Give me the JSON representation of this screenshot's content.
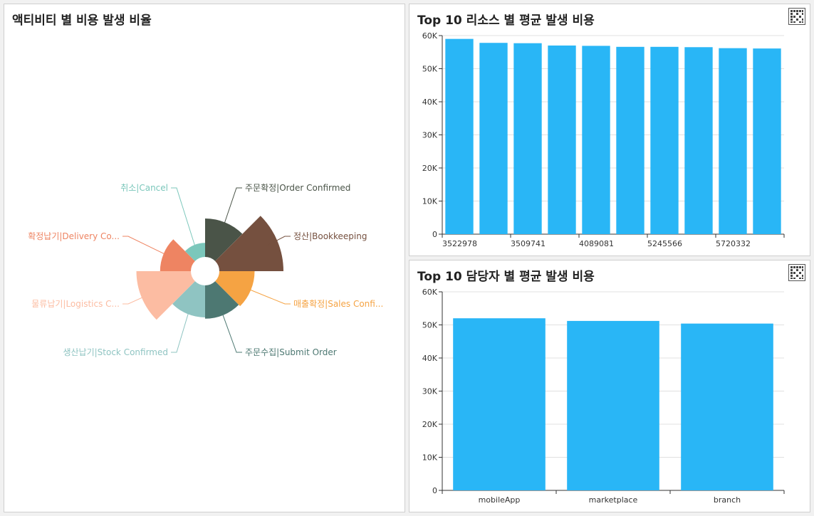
{
  "panels": {
    "activity": {
      "title": "액티비티 별 비용 발생 비율"
    },
    "resource": {
      "title": "Top 10 리소스 별 평균 발생 비용"
    },
    "staff": {
      "title": "Top 10 담당자 별 평균 발생 비용"
    }
  },
  "icons": {
    "menu": "grid-menu-icon"
  },
  "chart_data": [
    {
      "type": "pie",
      "variant": "rose",
      "slices": [
        {
          "label": "주문확정|Order Confirmed",
          "value": 60,
          "color": "#4a5448"
        },
        {
          "label": "정산|Bookkeeping",
          "value": 100,
          "color": "#75503f"
        },
        {
          "label": "매출확정|Sales Confi...",
          "value": 55,
          "color": "#f5a343"
        },
        {
          "label": "주문수집|Submit Order",
          "value": 52,
          "color": "#4d7872"
        },
        {
          "label": "생산납기|Stock Confirmed",
          "value": 50,
          "color": "#8fc4c2"
        },
        {
          "label": "물류납기|Logistics C...",
          "value": 85,
          "color": "#fcbca2"
        },
        {
          "label": "확정납기|Delivery Co...",
          "value": 48,
          "color": "#ee8462"
        },
        {
          "label": "취소|Cancel",
          "value": 22,
          "color": "#7bc7bb"
        }
      ]
    },
    {
      "type": "bar",
      "categories": [
        "3522978",
        "",
        "3509741",
        "",
        "4089081",
        "",
        "5245566",
        "",
        "5720332",
        ""
      ],
      "values": [
        59000,
        57800,
        57700,
        57000,
        56900,
        56600,
        56600,
        56500,
        56200,
        56100
      ],
      "ylim": [
        0,
        60000
      ],
      "yticks": [
        "0",
        "10K",
        "20K",
        "30K",
        "40K",
        "50K",
        "60K"
      ],
      "color": "#29b6f6"
    },
    {
      "type": "bar",
      "categories": [
        "mobileApp",
        "marketplace",
        "branch"
      ],
      "values": [
        52000,
        51200,
        50400
      ],
      "ylim": [
        0,
        60000
      ],
      "yticks": [
        "0",
        "10K",
        "20K",
        "30K",
        "40K",
        "50K",
        "60K"
      ],
      "color": "#29b6f6"
    }
  ]
}
